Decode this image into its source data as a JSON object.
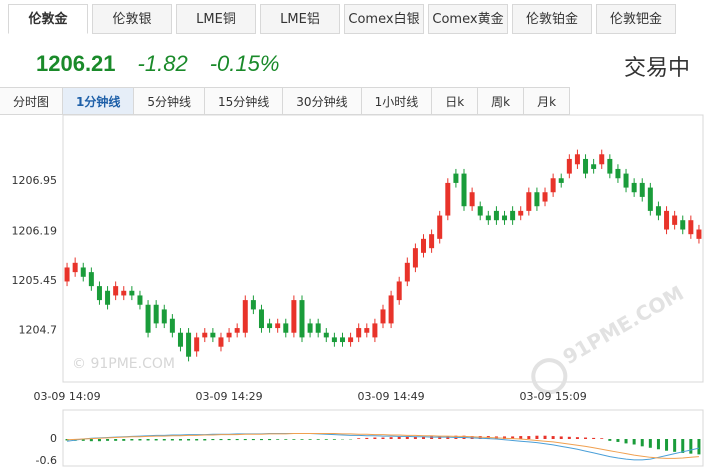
{
  "instrument_tabs": {
    "items": [
      "伦敦金",
      "伦敦银",
      "LME铜",
      "LME铝",
      "Comex白银",
      "Comex黄金",
      "伦敦铂金",
      "伦敦钯金"
    ],
    "active": 0
  },
  "quote": {
    "price": 1206.21,
    "change": -1.82,
    "change_pct": "-0.15%",
    "status": "交易中"
  },
  "period_tabs": {
    "items": [
      "分时图",
      "1分钟线",
      "5分钟线",
      "15分钟线",
      "30分钟线",
      "1小时线",
      "日k",
      "周k",
      "月k"
    ],
    "active": 1
  },
  "watermark": "© 91PME.COM",
  "logo_text": "91PME.COM",
  "chart_data": [
    {
      "type": "candlestick",
      "up_color": "#e8332a",
      "down_color": "#1a9c3a",
      "categories": [
        "03-09 14:09",
        null,
        null,
        null,
        null,
        null,
        null,
        null,
        null,
        null,
        null,
        null,
        null,
        null,
        null,
        null,
        null,
        null,
        null,
        null,
        "03-09 14:29",
        null,
        null,
        null,
        null,
        null,
        null,
        null,
        null,
        null,
        null,
        null,
        null,
        null,
        null,
        null,
        null,
        null,
        null,
        null,
        "03-09 14:49",
        null,
        null,
        null,
        null,
        null,
        null,
        null,
        null,
        null,
        null,
        null,
        null,
        null,
        null,
        null,
        null,
        null,
        null,
        null,
        "03-09 15:09",
        null,
        null,
        null,
        null,
        null,
        null,
        null,
        null,
        null,
        null,
        null,
        null,
        null,
        null,
        null,
        null,
        null,
        null
      ],
      "ohlc": [
        [
          1205.44,
          1205.72,
          1205.37,
          1205.65
        ],
        [
          1205.58,
          1205.8,
          1205.51,
          1205.72
        ],
        [
          1205.65,
          1205.72,
          1205.44,
          1205.51
        ],
        [
          1205.58,
          1205.65,
          1205.3,
          1205.37
        ],
        [
          1205.37,
          1205.44,
          1205.09,
          1205.16
        ],
        [
          1205.3,
          1205.37,
          1205.02,
          1205.09
        ],
        [
          1205.23,
          1205.44,
          1205.16,
          1205.37
        ],
        [
          1205.23,
          1205.37,
          1205.16,
          1205.3
        ],
        [
          1205.3,
          1205.37,
          1205.16,
          1205.23
        ],
        [
          1205.23,
          1205.3,
          1205.02,
          1205.09
        ],
        [
          1205.09,
          1205.16,
          1204.6,
          1204.67
        ],
        [
          1205.09,
          1205.16,
          1204.74,
          1204.81
        ],
        [
          1205.02,
          1205.09,
          1204.74,
          1204.81
        ],
        [
          1204.88,
          1204.95,
          1204.6,
          1204.67
        ],
        [
          1204.67,
          1204.74,
          1204.39,
          1204.46
        ],
        [
          1204.67,
          1204.74,
          1204.24,
          1204.31
        ],
        [
          1204.39,
          1204.67,
          1204.31,
          1204.6
        ],
        [
          1204.6,
          1204.74,
          1204.53,
          1204.67
        ],
        [
          1204.67,
          1204.74,
          1204.53,
          1204.6
        ],
        [
          1204.46,
          1204.67,
          1204.39,
          1204.6
        ],
        [
          1204.6,
          1204.74,
          1204.53,
          1204.67
        ],
        [
          1204.67,
          1204.81,
          1204.6,
          1204.74
        ],
        [
          1204.67,
          1205.23,
          1204.6,
          1205.16
        ],
        [
          1205.16,
          1205.23,
          1204.95,
          1205.02
        ],
        [
          1205.02,
          1205.09,
          1204.67,
          1204.74
        ],
        [
          1204.81,
          1204.88,
          1204.67,
          1204.74
        ],
        [
          1204.74,
          1204.88,
          1204.67,
          1204.81
        ],
        [
          1204.81,
          1204.88,
          1204.6,
          1204.67
        ],
        [
          1204.67,
          1205.23,
          1204.6,
          1205.16
        ],
        [
          1205.16,
          1205.23,
          1204.53,
          1204.6
        ],
        [
          1204.81,
          1204.88,
          1204.6,
          1204.67
        ],
        [
          1204.81,
          1204.88,
          1204.6,
          1204.67
        ],
        [
          1204.67,
          1204.74,
          1204.53,
          1204.6
        ],
        [
          1204.6,
          1204.67,
          1204.46,
          1204.53
        ],
        [
          1204.6,
          1204.67,
          1204.46,
          1204.53
        ],
        [
          1204.53,
          1204.67,
          1204.46,
          1204.6
        ],
        [
          1204.6,
          1204.81,
          1204.53,
          1204.74
        ],
        [
          1204.67,
          1204.81,
          1204.6,
          1204.74
        ],
        [
          1204.6,
          1204.88,
          1204.53,
          1204.81
        ],
        [
          1204.81,
          1205.09,
          1204.74,
          1205.02
        ],
        [
          1204.81,
          1205.3,
          1204.74,
          1205.23
        ],
        [
          1205.16,
          1205.51,
          1205.09,
          1205.44
        ],
        [
          1205.44,
          1205.8,
          1205.37,
          1205.72
        ],
        [
          1205.65,
          1206.01,
          1205.58,
          1205.94
        ],
        [
          1205.87,
          1206.15,
          1205.8,
          1206.08
        ],
        [
          1205.94,
          1206.22,
          1205.87,
          1206.15
        ],
        [
          1206.08,
          1206.5,
          1206.01,
          1206.43
        ],
        [
          1206.43,
          1206.99,
          1206.36,
          1206.92
        ],
        [
          1207.06,
          1207.13,
          1206.85,
          1206.92
        ],
        [
          1207.06,
          1207.13,
          1206.5,
          1206.57
        ],
        [
          1206.57,
          1206.85,
          1206.5,
          1206.78
        ],
        [
          1206.57,
          1206.64,
          1206.36,
          1206.43
        ],
        [
          1206.43,
          1206.5,
          1206.29,
          1206.36
        ],
        [
          1206.5,
          1206.57,
          1206.29,
          1206.36
        ],
        [
          1206.43,
          1206.5,
          1206.29,
          1206.36
        ],
        [
          1206.5,
          1206.57,
          1206.29,
          1206.36
        ],
        [
          1206.43,
          1206.57,
          1206.36,
          1206.5
        ],
        [
          1206.5,
          1206.85,
          1206.43,
          1206.78
        ],
        [
          1206.78,
          1206.85,
          1206.5,
          1206.57
        ],
        [
          1206.64,
          1206.85,
          1206.57,
          1206.78
        ],
        [
          1206.78,
          1207.06,
          1206.71,
          1206.99
        ],
        [
          1206.99,
          1207.06,
          1206.85,
          1206.92
        ],
        [
          1207.06,
          1207.35,
          1206.99,
          1207.28
        ],
        [
          1207.2,
          1207.42,
          1207.13,
          1207.35
        ],
        [
          1207.28,
          1207.35,
          1206.99,
          1207.06
        ],
        [
          1207.2,
          1207.28,
          1207.06,
          1207.13
        ],
        [
          1207.2,
          1207.42,
          1207.13,
          1207.35
        ],
        [
          1207.28,
          1207.35,
          1206.99,
          1207.06
        ],
        [
          1207.13,
          1207.2,
          1206.92,
          1206.99
        ],
        [
          1207.06,
          1207.13,
          1206.78,
          1206.85
        ],
        [
          1206.92,
          1206.99,
          1206.71,
          1206.78
        ],
        [
          1206.92,
          1206.99,
          1206.64,
          1206.71
        ],
        [
          1206.85,
          1206.92,
          1206.43,
          1206.5
        ],
        [
          1206.57,
          1206.64,
          1206.36,
          1206.43
        ],
        [
          1206.22,
          1206.57,
          1206.15,
          1206.5
        ],
        [
          1206.29,
          1206.5,
          1206.22,
          1206.43
        ],
        [
          1206.36,
          1206.43,
          1206.15,
          1206.22
        ],
        [
          1206.15,
          1206.43,
          1206.08,
          1206.36
        ],
        [
          1206.08,
          1206.29,
          1206.01,
          1206.22
        ]
      ],
      "ylim": [
        1203.96,
        1207.91
      ],
      "yticks": [
        1206.95,
        1206.19,
        1205.45,
        1204.7
      ],
      "grid": false
    },
    {
      "type": "macd",
      "up_color": "#e8332a",
      "down_color": "#1a9c3a",
      "histogram": [
        -0.04,
        -0.05,
        -0.05,
        -0.06,
        -0.06,
        -0.05,
        -0.05,
        -0.05,
        -0.04,
        -0.04,
        -0.04,
        -0.04,
        -0.04,
        -0.04,
        -0.04,
        -0.04,
        -0.04,
        -0.04,
        -0.03,
        -0.03,
        -0.03,
        -0.03,
        -0.03,
        -0.03,
        -0.03,
        -0.03,
        -0.02,
        -0.02,
        -0.02,
        -0.02,
        -0.02,
        -0.02,
        -0.02,
        -0.02,
        -0.01,
        -0.01,
        0.02,
        0.03,
        0.04,
        0.04,
        0.05,
        0.06,
        0.06,
        0.07,
        0.07,
        0.08,
        0.08,
        0.08,
        0.09,
        0.09,
        0.08,
        0.08,
        0.08,
        0.07,
        0.07,
        0.07,
        0.08,
        0.08,
        0.09,
        0.09,
        0.08,
        0.07,
        0.06,
        0.05,
        0.04,
        0.03,
        0.02,
        -0.05,
        -0.08,
        -0.12,
        -0.15,
        -0.2,
        -0.24,
        -0.28,
        -0.32,
        -0.35,
        -0.38,
        -0.4,
        -0.42
      ],
      "series": [
        {
          "color": "#4a9fd8",
          "values": [
            -0.06,
            -0.03,
            0,
            0.02,
            0.03,
            0.04,
            0.05,
            0.06,
            0.07,
            0.08,
            0.09,
            0.1,
            0.1,
            0.11,
            0.11,
            0.12,
            0.12,
            0.12,
            0.13,
            0.13,
            0.13,
            0.14,
            0.14,
            0.14,
            0.14,
            0.15,
            0.15,
            0.15,
            0.15,
            0.15,
            0.15,
            0.14,
            0.13,
            0.12,
            0.11,
            0.1,
            0.1,
            0.09,
            0.09,
            0.08,
            0.08,
            0.07,
            0.07,
            0.06,
            0.06,
            0.05,
            0.05,
            0.05,
            0.04,
            0.04,
            0.03,
            0.02,
            0.01,
            0,
            -0.02,
            -0.04,
            -0.06,
            -0.08,
            -0.1,
            -0.13,
            -0.16,
            -0.2,
            -0.24,
            -0.28,
            -0.33,
            -0.38,
            -0.43,
            -0.48,
            -0.52,
            -0.55,
            -0.57,
            -0.57,
            -0.55,
            -0.5,
            -0.45,
            -0.4,
            -0.35,
            -0.3,
            -0.25
          ]
        },
        {
          "color": "#f0a050",
          "values": [
            -0.02,
            -0.01,
            0,
            0.01,
            0.02,
            0.03,
            0.04,
            0.05,
            0.06,
            0.06,
            0.07,
            0.08,
            0.08,
            0.09,
            0.09,
            0.1,
            0.1,
            0.11,
            0.11,
            0.12,
            0.12,
            0.12,
            0.13,
            0.13,
            0.13,
            0.14,
            0.14,
            0.14,
            0.15,
            0.15,
            0.15,
            0.15,
            0.15,
            0.15,
            0.14,
            0.14,
            0.13,
            0.13,
            0.12,
            0.12,
            0.11,
            0.11,
            0.1,
            0.1,
            0.09,
            0.09,
            0.08,
            0.08,
            0.07,
            0.07,
            0.06,
            0.05,
            0.04,
            0.03,
            0.02,
            0.01,
            0,
            -0.02,
            -0.04,
            -0.06,
            -0.08,
            -0.11,
            -0.14,
            -0.17,
            -0.2,
            -0.24,
            -0.28,
            -0.32,
            -0.36,
            -0.4,
            -0.44,
            -0.47,
            -0.5,
            -0.52,
            -0.53,
            -0.53,
            -0.52,
            -0.5,
            -0.48
          ]
        }
      ],
      "ylim": [
        -0.71,
        0.71
      ],
      "yticks": [
        0,
        -0.6
      ]
    }
  ]
}
